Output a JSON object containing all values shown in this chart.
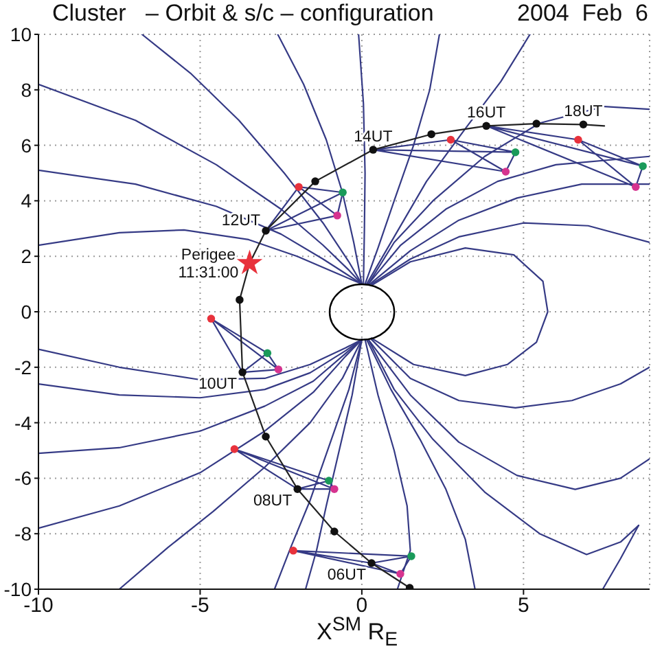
{
  "chart_data": {
    "type": "line",
    "title": "Cluster   – Orbit & s/c – configuration",
    "subtitle": "2004  Feb  6",
    "xlabel": "X$^{SM}$ R$_{E}$",
    "xlim": [
      -10,
      8.9
    ],
    "xticks": [
      -10,
      -5,
      0,
      5
    ],
    "ylim": [
      -10,
      10
    ],
    "yticks": [
      -10,
      -8,
      -6,
      -4,
      -2,
      0,
      2,
      4,
      6,
      8,
      10
    ],
    "grid": true,
    "annotations": [
      {
        "text": "06UT",
        "x": 0.3,
        "y": -9.06
      },
      {
        "text": "08UT",
        "x": -1.99,
        "y": -6.39
      },
      {
        "text": "10UT",
        "x": -3.69,
        "y": -2.18
      },
      {
        "text": "Perigee\n11:31:00",
        "x": -3.47,
        "y": 1.75
      },
      {
        "text": "12UT",
        "x": -2.97,
        "y": 2.92
      },
      {
        "text": "14UT",
        "x": 0.35,
        "y": 5.84
      },
      {
        "text": "16UT",
        "x": 3.85,
        "y": 6.7
      },
      {
        "text": "18UT",
        "x": 6.85,
        "y": 6.75
      }
    ],
    "series": [
      {
        "type": "line",
        "color": "#353a85",
        "x": [
          -10,
          -7,
          -4.5,
          -2.5,
          -1.2,
          -0.4,
          0
        ],
        "values": [
          8.2,
          6.9,
          5.3,
          3.7,
          2.4,
          1.5,
          1
        ]
      },
      {
        "type": "line",
        "color": "#353a85",
        "x": [
          -10,
          -7,
          -4.5,
          -2.5,
          -1.2,
          -0.4,
          0
        ],
        "values": [
          5.1,
          4.6,
          3.8,
          2.8,
          1.9,
          1.3,
          1
        ]
      },
      {
        "type": "line",
        "color": "#353a85",
        "x": [
          -10,
          -7.5,
          -5.5,
          -3.5,
          -2,
          -0.8,
          0
        ],
        "values": [
          2.4,
          2.85,
          2.95,
          2.6,
          2,
          1.4,
          1
        ]
      },
      {
        "type": "line",
        "color": "#353a85",
        "x": [
          -6.8,
          -5.3,
          -3.8,
          -2.4,
          -1.2,
          -0.4,
          0
        ],
        "values": [
          10,
          8.6,
          6.9,
          5,
          3.2,
          1.8,
          1
        ]
      },
      {
        "type": "line",
        "color": "#353a85",
        "x": [
          -2.6,
          -1.8,
          -1.1,
          -0.6,
          -0.25,
          0
        ],
        "values": [
          10,
          8.2,
          6.2,
          4.3,
          2.5,
          1
        ]
      },
      {
        "type": "line",
        "color": "#353a85",
        "x": [
          -0.1,
          0.05,
          0.1,
          0.08,
          0.05
        ],
        "values": [
          10,
          7.5,
          5,
          3,
          1
        ]
      },
      {
        "type": "line",
        "color": "#353a85",
        "x": [
          2.4,
          2.1,
          1.6,
          1,
          0.5,
          0.1
        ],
        "values": [
          10,
          8,
          6,
          4,
          2.3,
          1
        ]
      },
      {
        "type": "line",
        "color": "#353a85",
        "x": [
          5.2,
          4.3,
          3.2,
          2,
          1,
          0.15
        ],
        "values": [
          10,
          8.3,
          6.6,
          4.7,
          2.7,
          1
        ]
      },
      {
        "type": "line",
        "color": "#353a85",
        "x": [
          0.2,
          1,
          2.2,
          3.8,
          5.5,
          7.5,
          8.9
        ],
        "values": [
          1,
          2.5,
          4,
          5.6,
          6.8,
          7.4,
          7.3
        ]
      },
      {
        "type": "line",
        "color": "#353a85",
        "x": [
          0.2,
          1.2,
          2.6,
          4.2,
          6,
          8.9
        ],
        "values": [
          1,
          2.4,
          3.7,
          4.7,
          5.3,
          5.6
        ]
      },
      {
        "type": "line",
        "color": "#353a85",
        "x": [
          0.25,
          1.5,
          3,
          4.8,
          6.8,
          8.9
        ],
        "values": [
          1,
          2.2,
          3.3,
          4.1,
          4.6,
          4.6
        ]
      },
      {
        "type": "line",
        "color": "#353a85",
        "x": [
          0.3,
          1.5,
          3,
          5,
          7,
          8.9
        ],
        "values": [
          1,
          1.9,
          2.7,
          3.2,
          3.1,
          2.5
        ]
      },
      {
        "type": "line",
        "color": "#353a85",
        "x": [
          0.3,
          1.5,
          3.2,
          4.7,
          5.6,
          5.75,
          5.4,
          4.5,
          3.2,
          1.6,
          0.3
        ],
        "values": [
          0.95,
          1.8,
          2.3,
          2.05,
          1.1,
          0,
          -1.1,
          -1.9,
          -2.3,
          -1.9,
          -0.95
        ]
      },
      {
        "type": "line",
        "color": "#353a85",
        "x": [
          0.3,
          1.5,
          3,
          4.75,
          6.5,
          8,
          8.9
        ],
        "values": [
          -1,
          -2.4,
          -3.2,
          -3.46,
          -3.2,
          -2.6,
          -2
        ]
      },
      {
        "type": "line",
        "color": "#353a85",
        "x": [
          0.2,
          1.5,
          3,
          4.8,
          6.6,
          8,
          8.9
        ],
        "values": [
          -1,
          -3,
          -4.7,
          -5.9,
          -6.4,
          -6,
          -5.3
        ]
      },
      {
        "type": "line",
        "color": "#353a85",
        "x": [
          0.2,
          1,
          2.2,
          3.8,
          5.5,
          6.95,
          8,
          8.56
        ],
        "values": [
          -1,
          -2.8,
          -4.6,
          -6.5,
          -8,
          -8.75,
          -8.3,
          -7.7
        ]
      },
      {
        "type": "line",
        "color": "#353a85",
        "x": [
          7.45,
          8,
          8.56
        ],
        "values": [
          -10,
          -8.9,
          -7.7
        ]
      },
      {
        "type": "line",
        "color": "#353a85",
        "x": [
          0.15,
          0.9,
          1.8,
          2.6,
          3.2,
          3.5
        ],
        "values": [
          -1,
          -2.8,
          -4.6,
          -6.4,
          -8.2,
          -10
        ]
      },
      {
        "type": "line",
        "color": "#353a85",
        "x": [
          0.1,
          0.5,
          1,
          1.4,
          1.5,
          1.1
        ],
        "values": [
          -1,
          -3,
          -5,
          -7,
          -8.6,
          -10
        ]
      },
      {
        "type": "line",
        "color": "#353a85",
        "x": [
          0,
          -0.3,
          -0.7,
          -1.1,
          -1.4,
          -1.74
        ],
        "values": [
          -1,
          -3,
          -5,
          -7,
          -8.6,
          -10
        ]
      },
      {
        "type": "line",
        "color": "#353a85",
        "x": [
          0,
          -0.4,
          -1,
          -1.6,
          -2.2,
          -2.7
        ],
        "values": [
          -1,
          -2.8,
          -4.8,
          -6.8,
          -8.5,
          -10
        ]
      },
      {
        "type": "line",
        "color": "#353a85",
        "x": [
          0,
          -0.6,
          -1.6,
          -3,
          -4.6,
          -6,
          -7.5
        ],
        "values": [
          -1,
          -2.4,
          -4,
          -5.6,
          -7.2,
          -8.5,
          -10
        ]
      },
      {
        "type": "line",
        "color": "#353a85",
        "x": [
          -10,
          -7.5,
          -5,
          -3,
          -1.6,
          -0.5,
          0
        ],
        "values": [
          -1.35,
          -2,
          -2.45,
          -2.4,
          -1.9,
          -1.3,
          -1
        ]
      },
      {
        "type": "line",
        "color": "#353a85",
        "x": [
          -10,
          -7.5,
          -5,
          -3,
          -1.6,
          -0.5,
          0
        ],
        "values": [
          -2.6,
          -3,
          -3.1,
          -2.8,
          -2.2,
          -1.4,
          -1
        ]
      },
      {
        "type": "line",
        "color": "#353a85",
        "x": [
          -10,
          -7.5,
          -5,
          -3,
          -1.5,
          -0.5,
          0
        ],
        "values": [
          -5.1,
          -4.9,
          -4.3,
          -3.4,
          -2.5,
          -1.5,
          -1
        ]
      },
      {
        "type": "line",
        "color": "#353a85",
        "x": [
          -10,
          -7.5,
          -5,
          -3,
          -1.5,
          -0.5,
          0
        ],
        "values": [
          -7.8,
          -7,
          -5.8,
          -4.3,
          -2.9,
          -1.6,
          -1
        ]
      },
      {
        "type": "line",
        "color": "#353a85",
        "x": [
          -2.97,
          -1.95,
          -0.59,
          -0.76,
          -2.97,
          -0.59,
          null,
          -1.95,
          -0.76
        ],
        "values": [
          2.92,
          4.5,
          4.3,
          3.47,
          2.92,
          4.3,
          null,
          4.5,
          3.47
        ]
      },
      {
        "type": "line",
        "color": "#353a85",
        "x": [
          0.35,
          2.75,
          4.75,
          4.45,
          0.35,
          4.75,
          null,
          2.75,
          4.45
        ],
        "values": [
          5.84,
          6.2,
          5.75,
          5.05,
          5.84,
          5.75,
          null,
          6.2,
          5.05
        ]
      },
      {
        "type": "line",
        "color": "#353a85",
        "x": [
          3.85,
          6.69,
          8.69,
          8.47,
          3.85,
          8.69,
          null,
          6.69,
          8.47
        ],
        "values": [
          6.7,
          6.2,
          5.25,
          4.5,
          6.7,
          5.25,
          null,
          6.2,
          4.5
        ]
      },
      {
        "type": "line",
        "color": "#353a85",
        "x": [
          -3.69,
          -4.66,
          -2.92,
          -2.58,
          -3.69,
          -2.92,
          null,
          -4.66,
          -2.58
        ],
        "values": [
          -2.18,
          -0.25,
          -1.49,
          -2.08,
          -2.18,
          -1.49,
          null,
          -0.25,
          -2.08
        ]
      },
      {
        "type": "line",
        "color": "#353a85",
        "x": [
          -1.99,
          -3.94,
          -1.02,
          -0.85,
          -1.99,
          -1.02,
          null,
          -3.94,
          -0.85
        ],
        "values": [
          -6.39,
          -4.95,
          -6.09,
          -6.39,
          -6.39,
          -6.09,
          null,
          -4.95,
          -6.39
        ]
      },
      {
        "type": "line",
        "color": "#353a85",
        "x": [
          0.3,
          -2.12,
          1.53,
          1.19,
          0.3,
          1.53,
          null,
          -2.12,
          1.19
        ],
        "values": [
          -9.06,
          -8.61,
          -8.81,
          -9.45,
          -9.06,
          -8.81,
          null,
          -8.61,
          -9.45
        ]
      },
      {
        "type": "line",
        "color": "#222222",
        "x": [
          1.48,
          0.3,
          -0.85,
          -1.99,
          -2.97,
          -3.69,
          -3.78,
          -3.47,
          -2.97,
          -1.44,
          0.35,
          2.15,
          3.85,
          5.4,
          6.85,
          7.5
        ],
        "values": [
          -9.95,
          -9.06,
          -7.92,
          -6.39,
          -4.5,
          -2.18,
          0.43,
          1.75,
          2.92,
          4.7,
          5.84,
          6.4,
          6.7,
          6.78,
          6.75,
          6.7
        ]
      },
      {
        "type": "scatter",
        "marker": "circle",
        "color": "#111111",
        "x": [
          1.48,
          0.3,
          -0.85,
          -1.99,
          -2.97,
          -3.69,
          -3.78,
          -2.97,
          -1.44,
          0.35,
          2.15,
          3.85,
          5.4,
          6.85
        ],
        "values": [
          -9.95,
          -9.06,
          -7.92,
          -6.39,
          -4.5,
          -2.18,
          0.43,
          2.92,
          4.7,
          5.84,
          6.4,
          6.7,
          6.78,
          6.75
        ]
      },
      {
        "type": "scatter",
        "marker": "circle",
        "color": "#e8323c",
        "x": [
          -2.12,
          -3.94,
          -4.66,
          -1.95,
          2.75,
          6.69
        ],
        "values": [
          -8.61,
          -4.95,
          -0.25,
          4.5,
          6.2,
          6.2
        ]
      },
      {
        "type": "scatter",
        "marker": "circle",
        "color": "#1a9a5a",
        "x": [
          1.53,
          -1.02,
          -2.92,
          -0.59,
          4.75,
          8.69
        ],
        "values": [
          -8.81,
          -6.09,
          -1.49,
          4.3,
          5.75,
          5.25
        ]
      },
      {
        "type": "scatter",
        "marker": "circle",
        "color": "#d6338f",
        "x": [
          1.19,
          -0.85,
          -2.58,
          -0.76,
          4.45,
          8.47
        ],
        "values": [
          -9.45,
          -6.39,
          -2.08,
          3.47,
          5.05,
          4.5
        ]
      },
      {
        "type": "scatter",
        "marker": "star",
        "color": "#e8323c",
        "x": [
          -3.47
        ],
        "values": [
          1.75
        ]
      }
    ]
  }
}
